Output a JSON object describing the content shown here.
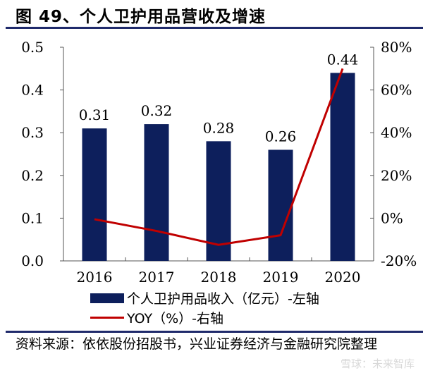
{
  "title": "图 49、个人卫护用品营收及增速",
  "chart_data": {
    "type": "bar",
    "title": "图 49、个人卫护用品营收及增速",
    "categories": [
      "2016",
      "2017",
      "2018",
      "2019",
      "2020"
    ],
    "series": [
      {
        "name": "个人卫护用品收入（亿元）-左轴",
        "type": "bar",
        "axis": "left",
        "color": "#0d1f5c",
        "values": [
          0.31,
          0.32,
          0.28,
          0.26,
          0.44
        ],
        "labels": [
          "0.31",
          "0.32",
          "0.28",
          "0.26",
          "0.44"
        ]
      },
      {
        "name": "YOY（%）-右轴",
        "type": "line",
        "axis": "right",
        "color": "#c00000",
        "values": [
          -0.5,
          -6,
          -12.5,
          -8,
          70
        ]
      }
    ],
    "left_axis": {
      "range": [
        0,
        0.5
      ],
      "ticks": [
        "0.0",
        "0.1",
        "0.2",
        "0.3",
        "0.4",
        "0.5"
      ]
    },
    "right_axis": {
      "range": [
        -20,
        80
      ],
      "ticks": [
        "-20%",
        "0%",
        "20%",
        "40%",
        "60%",
        "80%"
      ]
    },
    "grid": false,
    "legend_position": "bottom"
  },
  "legend": {
    "bar_label": "个人卫护用品收入（亿元）-左轴",
    "line_label": "YOY（%）-右轴"
  },
  "source": "资料来源：依依股份招股书，兴业证券经济与金融研究院整理",
  "watermark": "雪球：未来智库"
}
